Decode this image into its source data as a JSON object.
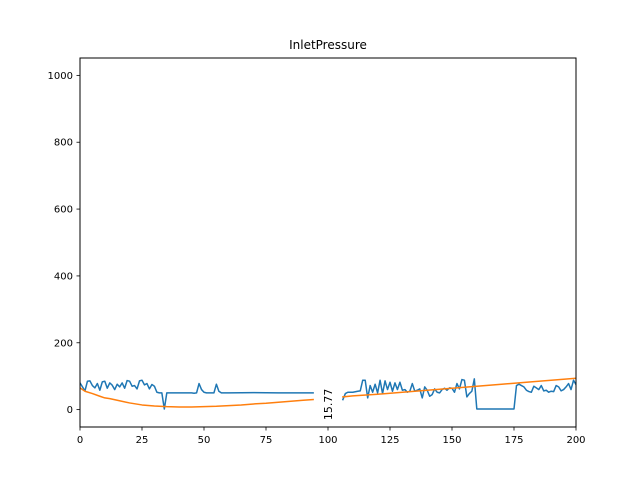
{
  "chart_data": {
    "type": "line",
    "title": "InletPressure",
    "xlabel": "",
    "ylabel": "",
    "xlim": [
      0,
      200
    ],
    "ylim": [
      -52,
      1052
    ],
    "xticks": [
      0,
      25,
      50,
      75,
      100,
      125,
      150,
      175,
      200
    ],
    "yticks": [
      0,
      200,
      400,
      600,
      800,
      1000
    ],
    "grid": false,
    "legend": "none",
    "annotation": {
      "text": "15.77",
      "x": 100,
      "y": 15.77
    },
    "series": [
      {
        "color": "#1f77b4",
        "segments": [
          [
            [
              0,
              80
            ],
            [
              1,
              68
            ],
            [
              2,
              56
            ],
            [
              3,
              85
            ],
            [
              4,
              86
            ],
            [
              5,
              72
            ],
            [
              6,
              65
            ],
            [
              7,
              78
            ],
            [
              8,
              58
            ],
            [
              9,
              83
            ],
            [
              10,
              85
            ],
            [
              11,
              64
            ],
            [
              12,
              80
            ],
            [
              13,
              73
            ],
            [
              14,
              60
            ],
            [
              15,
              76
            ],
            [
              16,
              68
            ],
            [
              17,
              80
            ],
            [
              18,
              64
            ],
            [
              19,
              87
            ],
            [
              20,
              85
            ],
            [
              21,
              70
            ],
            [
              22,
              72
            ],
            [
              23,
              62
            ],
            [
              24,
              86
            ],
            [
              25,
              88
            ],
            [
              26,
              74
            ],
            [
              27,
              78
            ],
            [
              28,
              62
            ],
            [
              29,
              75
            ],
            [
              30,
              70
            ],
            [
              31,
              52
            ],
            [
              32,
              50
            ],
            [
              33,
              50
            ],
            [
              34,
              2
            ],
            [
              35,
              50
            ],
            [
              36,
              50
            ],
            [
              40,
              50
            ],
            [
              45,
              50
            ],
            [
              46,
              49
            ],
            [
              47,
              50
            ],
            [
              48,
              78
            ],
            [
              49,
              60
            ],
            [
              50,
              52
            ],
            [
              51,
              50
            ],
            [
              53,
              50
            ],
            [
              54,
              50
            ],
            [
              55,
              76
            ],
            [
              56,
              55
            ],
            [
              57,
              50
            ],
            [
              60,
              50
            ],
            [
              70,
              51
            ],
            [
              80,
              50
            ],
            [
              94,
              50
            ]
          ],
          [
            [
              106,
              30
            ],
            [
              107,
              48
            ],
            [
              108,
              52
            ],
            [
              110,
              52
            ],
            [
              112,
              55
            ],
            [
              113,
              56
            ],
            [
              114,
              88
            ],
            [
              115,
              88
            ],
            [
              116,
              35
            ],
            [
              117,
              72
            ],
            [
              118,
              52
            ],
            [
              119,
              76
            ],
            [
              120,
              50
            ],
            [
              121,
              88
            ],
            [
              122,
              48
            ],
            [
              123,
              86
            ],
            [
              124,
              60
            ],
            [
              125,
              82
            ],
            [
              126,
              55
            ],
            [
              127,
              80
            ],
            [
              128,
              60
            ],
            [
              129,
              82
            ],
            [
              130,
              58
            ],
            [
              131,
              60
            ],
            [
              132,
              52
            ],
            [
              133,
              55
            ],
            [
              134,
              78
            ],
            [
              135,
              55
            ],
            [
              136,
              58
            ],
            [
              137,
              62
            ],
            [
              138,
              35
            ],
            [
              139,
              68
            ],
            [
              140,
              58
            ],
            [
              141,
              40
            ],
            [
              142,
              45
            ],
            [
              143,
              62
            ],
            [
              144,
              52
            ],
            [
              145,
              50
            ],
            [
              146,
              60
            ],
            [
              147,
              64
            ],
            [
              148,
              58
            ],
            [
              149,
              65
            ],
            [
              150,
              64
            ],
            [
              151,
              52
            ],
            [
              152,
              78
            ],
            [
              153,
              62
            ],
            [
              154,
              90
            ],
            [
              155,
              88
            ],
            [
              156,
              38
            ],
            [
              157,
              48
            ],
            [
              158,
              55
            ],
            [
              159,
              92
            ],
            [
              160,
              2
            ],
            [
              165,
              2
            ],
            [
              170,
              2
            ],
            [
              175,
              2
            ],
            [
              176,
              72
            ],
            [
              177,
              76
            ],
            [
              178,
              72
            ],
            [
              179,
              68
            ],
            [
              180,
              58
            ],
            [
              181,
              54
            ],
            [
              182,
              52
            ],
            [
              183,
              70
            ],
            [
              184,
              65
            ],
            [
              185,
              60
            ],
            [
              186,
              72
            ],
            [
              187,
              56
            ],
            [
              188,
              58
            ],
            [
              189,
              52
            ],
            [
              190,
              55
            ],
            [
              191,
              54
            ],
            [
              192,
              72
            ],
            [
              193,
              68
            ],
            [
              194,
              56
            ],
            [
              195,
              60
            ],
            [
              196,
              68
            ],
            [
              197,
              78
            ],
            [
              198,
              60
            ],
            [
              199,
              88
            ],
            [
              200,
              75
            ]
          ]
        ]
      },
      {
        "color": "#ff7f0e",
        "segments": [
          [
            [
              0,
              65
            ],
            [
              2,
              55
            ],
            [
              5,
              48
            ],
            [
              8,
              40
            ],
            [
              10,
              35
            ],
            [
              12,
              33
            ],
            [
              15,
              28
            ],
            [
              20,
              20
            ],
            [
              25,
              14
            ],
            [
              30,
              11
            ],
            [
              35,
              9
            ],
            [
              40,
              8
            ],
            [
              45,
              8
            ],
            [
              50,
              9
            ],
            [
              55,
              10
            ],
            [
              60,
              12
            ],
            [
              65,
              14
            ],
            [
              70,
              17
            ],
            [
              75,
              19
            ],
            [
              80,
              22
            ],
            [
              85,
              25
            ],
            [
              90,
              28
            ],
            [
              94,
              30
            ]
          ],
          [
            [
              106,
              38
            ],
            [
              110,
              41
            ],
            [
              120,
              46
            ],
            [
              130,
              52
            ],
            [
              140,
              58
            ],
            [
              150,
              64
            ],
            [
              160,
              70
            ],
            [
              170,
              76
            ],
            [
              180,
              82
            ],
            [
              190,
              88
            ],
            [
              200,
              94
            ]
          ]
        ]
      }
    ]
  }
}
